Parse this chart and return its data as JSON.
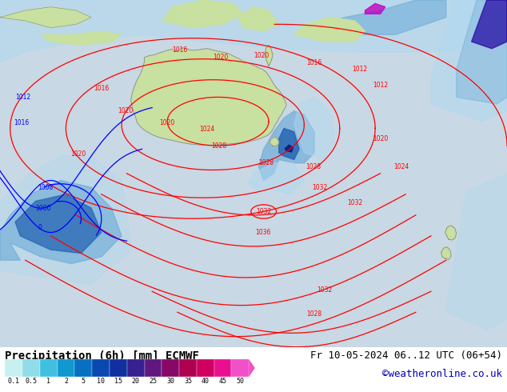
{
  "title_left": "Precipitation (6h) [mm] ECMWF",
  "title_right": "Fr 10-05-2024 06..12 UTC (06+54)",
  "credit": "©weatheronline.co.uk",
  "colorbar_levels": [
    0.1,
    0.5,
    1,
    2,
    5,
    10,
    15,
    20,
    25,
    30,
    35,
    40,
    45,
    50
  ],
  "colorbar_colors": [
    "#c8f0f0",
    "#90e0e8",
    "#50c8e0",
    "#20a8d8",
    "#1080c8",
    "#1060b8",
    "#0840a8",
    "#302898",
    "#601888",
    "#901070",
    "#b80858",
    "#d80848",
    "#f00880",
    "#e820b0"
  ],
  "bg_color": "#ffffff",
  "ocean_color": "#c8dce8",
  "land_color": "#c8e0a0",
  "land_edge": "#888888",
  "text_color": "#000000",
  "credit_color": "#0000bb",
  "title_fontsize": 10,
  "credit_fontsize": 9,
  "map_ocean_bg": "#c8d8e4",
  "precip_light": "#b0d8f0",
  "precip_mid": "#70acd8",
  "precip_dark": "#2060b0",
  "precip_heavy": "#101880"
}
